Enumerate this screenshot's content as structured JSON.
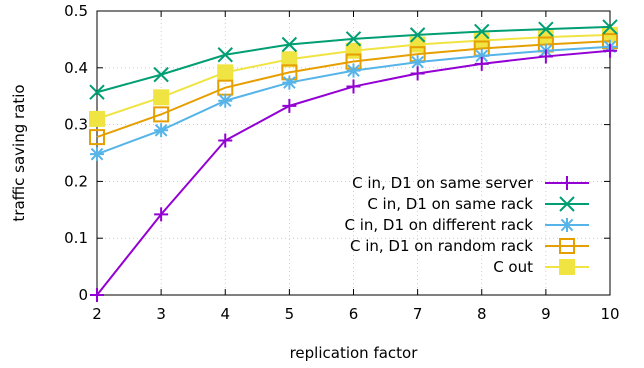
{
  "chart_data": {
    "type": "line",
    "title": "",
    "xlabel": "replication factor",
    "ylabel": "traffic saving ratio",
    "x": [
      2,
      3,
      4,
      5,
      6,
      7,
      8,
      9,
      10
    ],
    "xlim": [
      2,
      10
    ],
    "ylim": [
      0,
      0.5
    ],
    "xticks": [
      2,
      3,
      4,
      5,
      6,
      7,
      8,
      9,
      10
    ],
    "yticks": [
      0,
      0.1,
      0.2,
      0.3,
      0.4,
      0.5
    ],
    "ytick_labels": [
      "0",
      "0.1",
      "0.2",
      "0.3",
      "0.4",
      "0.5"
    ],
    "grid": true,
    "legend_position": "bottom-right",
    "series": [
      {
        "name": "C in, D1 on same server",
        "color": "#9400d3",
        "marker": "plus",
        "values": [
          0.0,
          0.142,
          0.272,
          0.333,
          0.367,
          0.39,
          0.407,
          0.42,
          0.43
        ]
      },
      {
        "name": "C in, D1 on same rack",
        "color": "#009e73",
        "marker": "cross",
        "values": [
          0.357,
          0.388,
          0.423,
          0.441,
          0.451,
          0.458,
          0.464,
          0.468,
          0.472
        ]
      },
      {
        "name": "C in, D1 on different rack",
        "color": "#56b4e9",
        "marker": "star",
        "values": [
          0.248,
          0.29,
          0.342,
          0.374,
          0.395,
          0.41,
          0.421,
          0.43,
          0.437
        ]
      },
      {
        "name": "C in, D1 on random rack",
        "color": "#e69f00",
        "marker": "open-square",
        "values": [
          0.278,
          0.318,
          0.365,
          0.392,
          0.411,
          0.424,
          0.434,
          0.441,
          0.447
        ]
      },
      {
        "name": "C out",
        "color": "#f0e442",
        "marker": "filled-square",
        "values": [
          0.31,
          0.348,
          0.392,
          0.415,
          0.43,
          0.441,
          0.448,
          0.454,
          0.458
        ]
      }
    ]
  }
}
